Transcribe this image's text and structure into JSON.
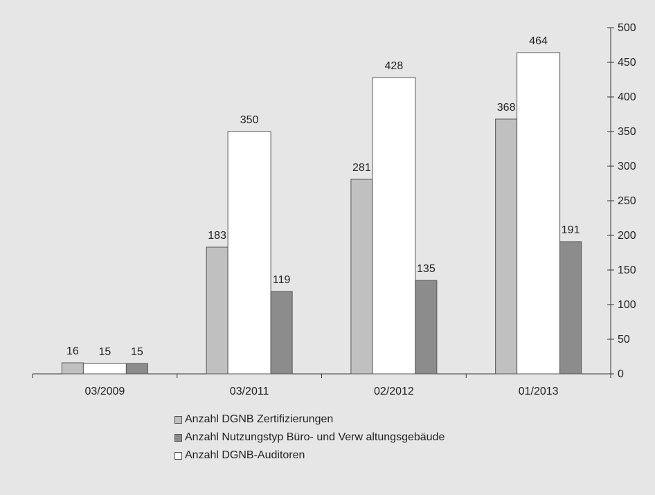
{
  "chart_data": {
    "type": "bar",
    "categories": [
      "03/2009",
      "03/2011",
      "02/2012",
      "01/2013"
    ],
    "series": [
      {
        "name": "Anzahl DGNB Zertifizierungen",
        "values": [
          16,
          183,
          281,
          368
        ],
        "color": "#c0c0c0"
      },
      {
        "name": "Anzahl DGNB-Auditoren",
        "values": [
          15,
          350,
          428,
          464
        ],
        "color": "#ffffff"
      },
      {
        "name": "Anzahl Nutzungstyp Büro- und Verwaltungsgebäude",
        "values": [
          15,
          119,
          135,
          191
        ],
        "color": "#8c8c8c"
      }
    ],
    "legend": [
      {
        "label": "Anzahl DGNB Zertifizierungen",
        "color": "#c0c0c0"
      },
      {
        "label": "Anzahl Nutzungstyp Büro- und Verw altungsgebäude",
        "color": "#8c8c8c"
      },
      {
        "label": "Anzahl DGNB-Auditoren",
        "color": "#ffffff"
      }
    ],
    "y_axis_position": "right",
    "ylim": [
      0,
      500
    ],
    "yticks": [
      0,
      50,
      100,
      150,
      200,
      250,
      300,
      350,
      400,
      450,
      500
    ],
    "grid": false,
    "legend_position": "bottom",
    "data_labels": true
  }
}
